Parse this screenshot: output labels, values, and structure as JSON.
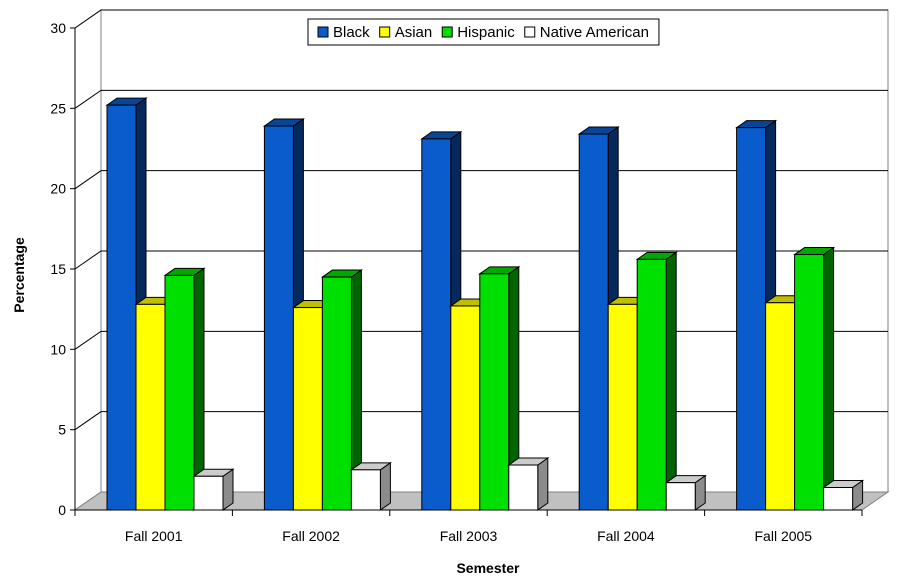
{
  "chart_data": {
    "type": "bar",
    "title": "",
    "xlabel": "Semester",
    "ylabel": "Percentage",
    "ylim": [
      0,
      30
    ],
    "yticks": [
      0,
      5,
      10,
      15,
      20,
      25,
      30
    ],
    "categories": [
      "Fall 2001",
      "Fall 2002",
      "Fall 2003",
      "Fall 2004",
      "Fall 2005"
    ],
    "series": [
      {
        "name": "Black",
        "values": [
          25.2,
          23.9,
          23.1,
          23.4,
          23.8
        ],
        "color": "#0a5ccc"
      },
      {
        "name": "Asian",
        "values": [
          12.8,
          12.6,
          12.7,
          12.8,
          12.9
        ],
        "color": "#ffff00"
      },
      {
        "name": "Hispanic",
        "values": [
          14.6,
          14.5,
          14.7,
          15.6,
          15.9
        ],
        "color": "#00e000"
      },
      {
        "name": "Native American",
        "values": [
          2.1,
          2.5,
          2.8,
          1.7,
          1.4
        ],
        "color": "#ffffff"
      }
    ],
    "legend_position": "top",
    "grid": true,
    "style": "3d-clustered-column"
  }
}
